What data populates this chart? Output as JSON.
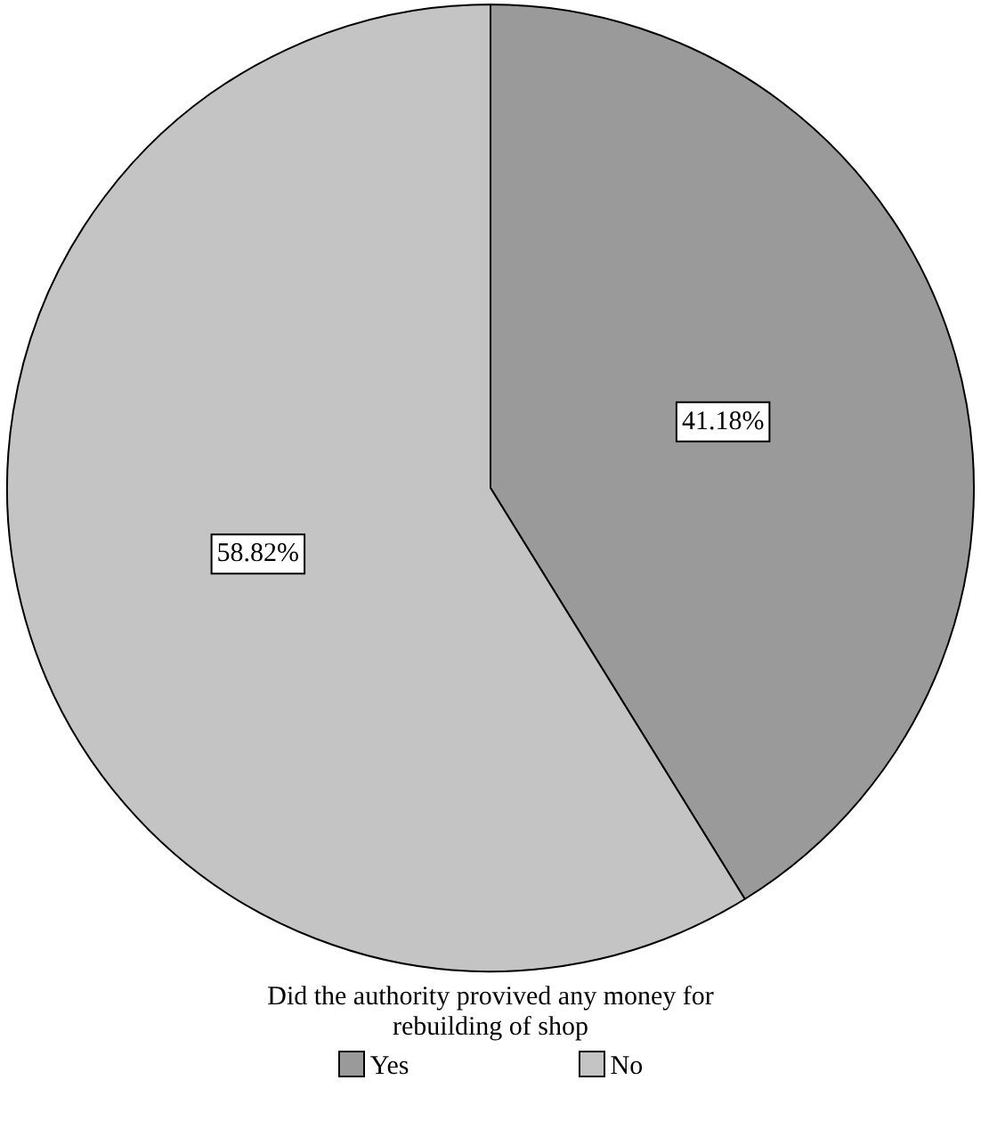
{
  "chart_data": {
    "type": "pie",
    "legend_title": "Did the authority provived any money for rebuilding of shop",
    "categories": [
      "Yes",
      "No"
    ],
    "values": [
      41.18,
      58.82
    ],
    "colors": [
      "#9a9a9a",
      "#c4c4c4"
    ],
    "value_labels": [
      "41.18%",
      "58.82%"
    ],
    "legend": "bottom"
  }
}
